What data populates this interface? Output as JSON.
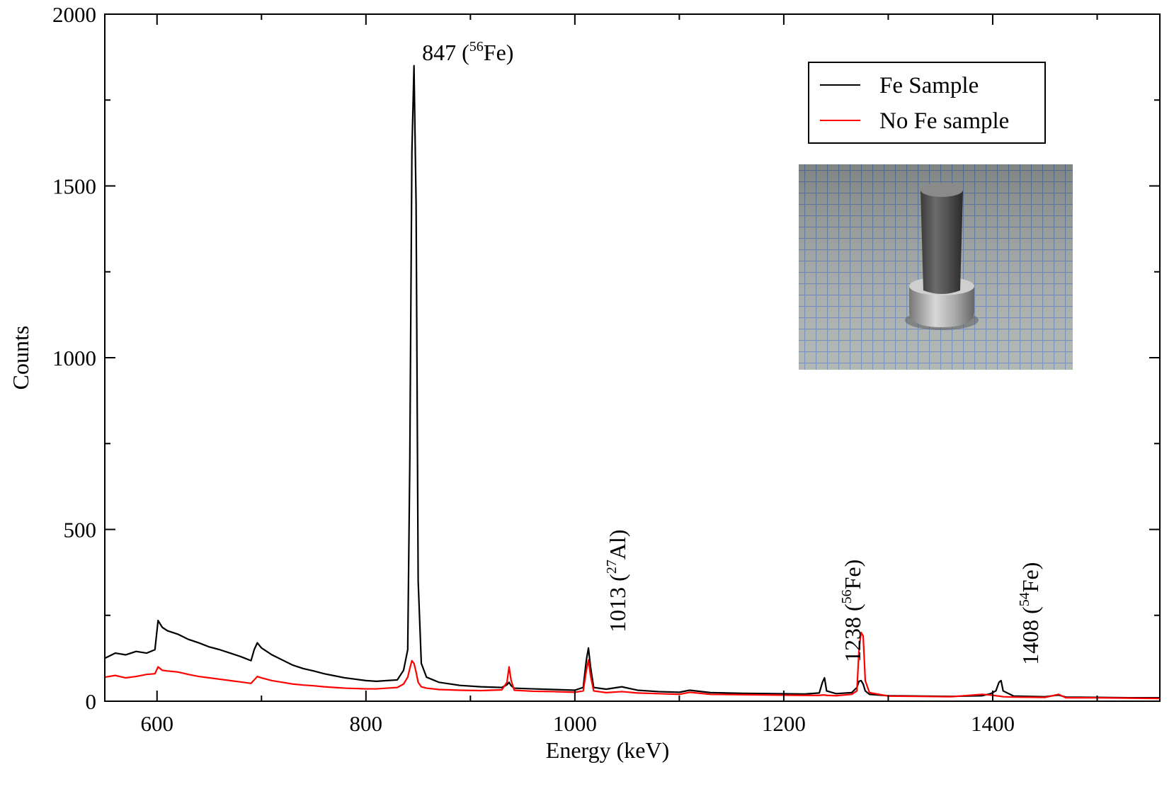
{
  "chart_data": {
    "type": "line",
    "xlabel": "Energy (keV)",
    "ylabel": "Counts",
    "xlim": [
      550,
      1560
    ],
    "ylim": [
      0,
      2000
    ],
    "xticks": [
      600,
      800,
      1000,
      1200,
      1400
    ],
    "yticks": [
      0,
      500,
      1000,
      1500,
      2000
    ],
    "xminorticks": [
      700,
      900,
      1100,
      1300,
      1500
    ],
    "yminorticks": [
      250,
      750,
      1250,
      1750
    ],
    "legend": "upper right",
    "x": [
      550,
      560,
      570,
      580,
      590,
      598,
      601,
      605,
      610,
      620,
      630,
      640,
      650,
      660,
      670,
      680,
      690,
      693,
      696,
      700,
      710,
      720,
      730,
      740,
      750,
      760,
      770,
      780,
      790,
      800,
      810,
      820,
      830,
      836,
      840,
      842,
      844,
      846,
      848,
      850,
      853,
      858,
      870,
      890,
      910,
      930,
      935,
      937,
      939,
      942,
      960,
      980,
      1000,
      1008,
      1011,
      1013,
      1015,
      1018,
      1030,
      1045,
      1060,
      1080,
      1100,
      1110,
      1130,
      1160,
      1190,
      1220,
      1234,
      1237,
      1239,
      1241,
      1250,
      1265,
      1270,
      1272,
      1274,
      1276,
      1278,
      1282,
      1300,
      1330,
      1360,
      1390,
      1398,
      1403,
      1406,
      1408,
      1410,
      1420,
      1450,
      1463,
      1470,
      1500,
      1530,
      1560
    ],
    "series": [
      {
        "name": "Fe Sample",
        "color": "#000000",
        "values": [
          125,
          140,
          135,
          145,
          140,
          150,
          235,
          215,
          205,
          195,
          180,
          170,
          158,
          150,
          140,
          130,
          118,
          150,
          170,
          155,
          135,
          120,
          105,
          95,
          88,
          80,
          74,
          68,
          64,
          60,
          58,
          60,
          62,
          90,
          150,
          700,
          1600,
          1850,
          1450,
          350,
          110,
          70,
          55,
          46,
          42,
          40,
          48,
          55,
          45,
          38,
          36,
          34,
          32,
          40,
          120,
          155,
          100,
          40,
          35,
          42,
          32,
          28,
          26,
          32,
          25,
          23,
          22,
          21,
          24,
          55,
          68,
          30,
          22,
          25,
          40,
          58,
          60,
          50,
          30,
          20,
          16,
          15,
          14,
          16,
          22,
          30,
          55,
          60,
          30,
          15,
          13,
          18,
          12,
          11,
          10,
          10
        ]
      },
      {
        "name": "No Fe sample",
        "color": "#ff0000",
        "values": [
          70,
          75,
          68,
          72,
          78,
          80,
          100,
          90,
          88,
          85,
          78,
          72,
          68,
          64,
          60,
          56,
          52,
          62,
          72,
          68,
          60,
          55,
          50,
          47,
          45,
          42,
          40,
          38,
          37,
          36,
          36,
          38,
          40,
          50,
          70,
          95,
          118,
          110,
          85,
          55,
          42,
          38,
          34,
          32,
          31,
          33,
          55,
          100,
          60,
          32,
          29,
          28,
          26,
          30,
          90,
          120,
          75,
          30,
          25,
          28,
          24,
          22,
          20,
          26,
          20,
          19,
          18,
          17,
          17,
          18,
          18,
          17,
          16,
          20,
          30,
          150,
          200,
          190,
          60,
          25,
          15,
          14,
          13,
          20,
          18,
          16,
          15,
          14,
          13,
          12,
          11,
          20,
          10,
          10,
          9,
          8
        ]
      }
    ],
    "annotations": [
      {
        "x": 847,
        "prefix": "847 (",
        "sup": "56",
        "suffix": "Fe)",
        "rotated": false
      },
      {
        "x": 1013,
        "prefix": "1013 (",
        "sup": "27",
        "suffix": "Al)",
        "rotated": true
      },
      {
        "x": 1238,
        "prefix": "1238 (",
        "sup": "56",
        "suffix": "Fe)",
        "rotated": true
      },
      {
        "x": 1408,
        "prefix": "1408 (",
        "sup": "54",
        "suffix": "Fe)",
        "rotated": true
      }
    ]
  }
}
